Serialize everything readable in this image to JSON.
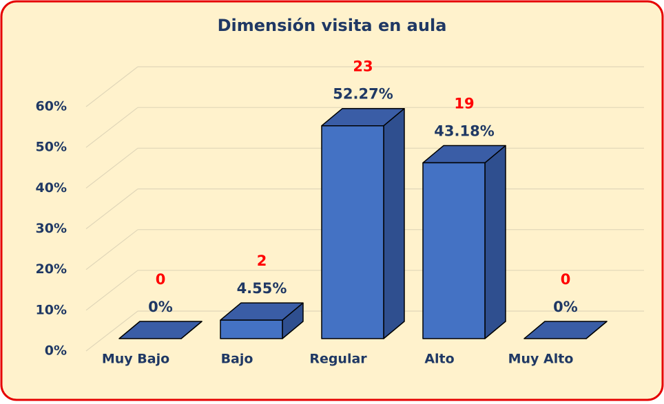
{
  "chart_data": {
    "type": "bar3d",
    "title": "Dimensión visita en aula",
    "categories": [
      "Muy Bajo",
      "Bajo",
      "Regular",
      "Alto",
      "Muy Alto"
    ],
    "values": [
      0,
      4.55,
      52.27,
      43.18,
      0
    ],
    "value_labels": [
      "0%",
      "4.55%",
      "52.27%",
      "43.18%",
      "0%"
    ],
    "counts": [
      0,
      2,
      23,
      19,
      0
    ],
    "color": "#4472c4",
    "ylim": [
      0,
      60
    ],
    "yticks": [
      {
        "value": 0,
        "label": "0%"
      },
      {
        "value": 10,
        "label": "10%"
      },
      {
        "value": 20,
        "label": "20%"
      },
      {
        "value": 30,
        "label": "30%"
      },
      {
        "value": 40,
        "label": "40%"
      },
      {
        "value": 50,
        "label": "50%"
      },
      {
        "value": 60,
        "label": "60%"
      }
    ],
    "grid": true
  }
}
